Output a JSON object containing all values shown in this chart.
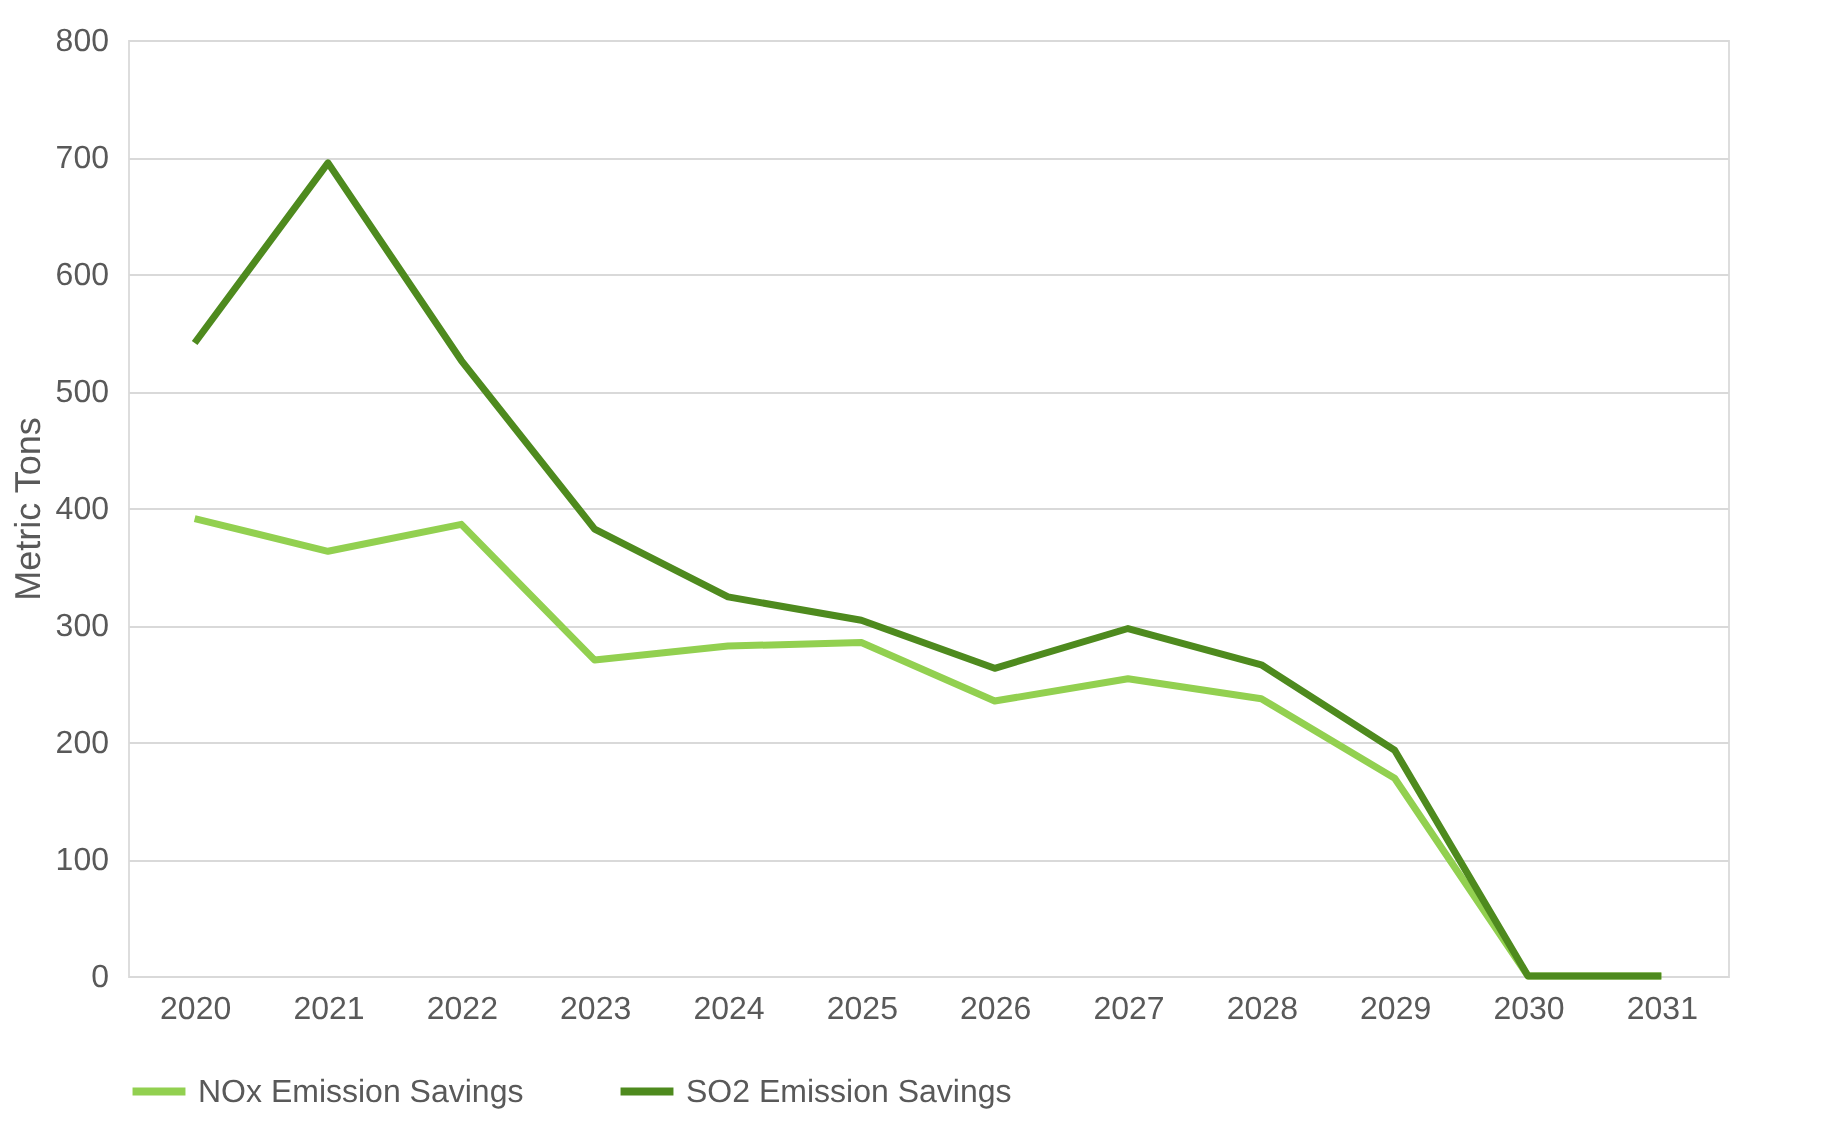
{
  "chart_data": {
    "type": "line",
    "categories": [
      "2020",
      "2021",
      "2022",
      "2023",
      "2024",
      "2025",
      "2026",
      "2027",
      "2028",
      "2029",
      "2030",
      "2031"
    ],
    "series": [
      {
        "name": "NOx Emission Savings",
        "color": "#92d050",
        "values": [
          391,
          363,
          386,
          270,
          282,
          285,
          235,
          254,
          237,
          169,
          0,
          0
        ]
      },
      {
        "name": "SO2 Emission Savings",
        "color": "#4e8a1e",
        "values": [
          541,
          695,
          526,
          382,
          324,
          304,
          263,
          297,
          266,
          193,
          0,
          0
        ]
      }
    ],
    "ylabel": "Metric Tons",
    "ylim": [
      0,
      800
    ],
    "yticks": [
      0,
      100,
      200,
      300,
      400,
      500,
      600,
      700,
      800
    ],
    "grid": "y",
    "legend": "bottom"
  }
}
